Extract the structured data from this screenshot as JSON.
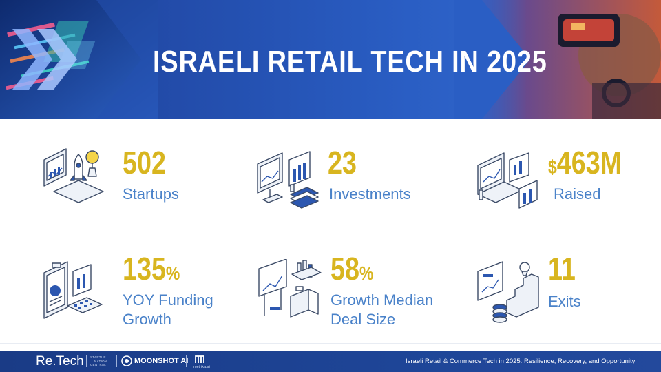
{
  "header": {
    "title": "ISRAELI RETAIL TECH IN 2025"
  },
  "stats": [
    {
      "value": "502",
      "unit": "",
      "label_lines": [
        "Startups"
      ],
      "icon": "rocket-laptop-icon"
    },
    {
      "value": "23",
      "unit": "",
      "label_lines": [
        "Investments"
      ],
      "icon": "monitor-money-icon"
    },
    {
      "value": "463M",
      "unit": "$",
      "label_lines": [
        "Raised"
      ],
      "icon": "laptop-charts-icon"
    },
    {
      "value": "135",
      "unit": "%",
      "label_lines": [
        "YOY Funding",
        "Growth"
      ],
      "icon": "clipboard-calculator-icon"
    },
    {
      "value": "58",
      "unit": "%",
      "label_lines": [
        "Growth Median",
        "Deal Size"
      ],
      "icon": "billboard-briefcase-icon"
    },
    {
      "value": "11",
      "unit": "",
      "label_lines": [
        "Exits"
      ],
      "icon": "stairs-trophy-icon"
    }
  ],
  "footer": {
    "logos": {
      "retech": "Re.Tech",
      "startup_nation_central": [
        "STARTUP",
        "NATION",
        "CENTRAL"
      ],
      "moonshot": "MOONSHOT AI",
      "metrika": "metrika.ai"
    },
    "caption": "Israeli Retail & Commerce Tech in 2025: Resilience, Recovery, and Opportunity"
  },
  "colors": {
    "banner_blue": "#2450b0",
    "accent_gold": "#d8b51f",
    "label_blue": "#4a82c9",
    "footer_navy": "#1a3b86"
  }
}
